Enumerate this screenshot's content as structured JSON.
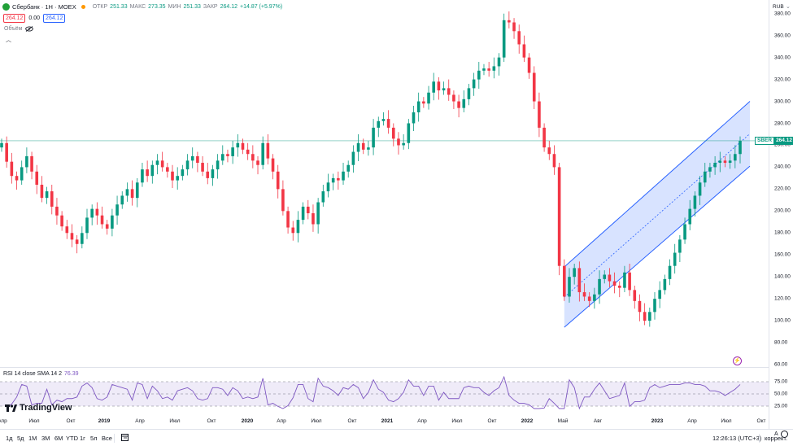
{
  "legend": {
    "symbol": "Сбербанк · 1Н · MOEX",
    "open_label": "ОТКР",
    "open": "251.33",
    "high_label": "МАКС",
    "high": "273.35",
    "low_label": "МИН",
    "low": "251.33",
    "close_label": "ЗАКР",
    "close": "264.12",
    "change": "+14.87 (+5.97%)",
    "bid": "264.12",
    "spread": "0.00",
    "ask": "264.12",
    "volume_label": "Объём"
  },
  "currency": "RUB",
  "last_price_label": {
    "ticker": "SBER",
    "price": "264.12"
  },
  "y_axis": [
    "380.00",
    "360.00",
    "340.00",
    "320.00",
    "300.00",
    "280.00",
    "260.00",
    "240.00",
    "220.00",
    "200.00",
    "180.00",
    "160.00",
    "140.00",
    "120.00",
    "100.00",
    "80.00",
    "60.00"
  ],
  "rsi": {
    "legend": "RSI 14 close SMA 14 2",
    "value": "76.39",
    "levels": [
      "75.00",
      "50.00",
      "25.00"
    ]
  },
  "x_axis": [
    {
      "label": "Апр",
      "year": false
    },
    {
      "label": "Июл",
      "year": false
    },
    {
      "label": "Окт",
      "year": false
    },
    {
      "label": "2019",
      "year": true
    },
    {
      "label": "Апр",
      "year": false
    },
    {
      "label": "Июл",
      "year": false
    },
    {
      "label": "Окт",
      "year": false
    },
    {
      "label": "2020",
      "year": true
    },
    {
      "label": "Апр",
      "year": false
    },
    {
      "label": "Июл",
      "year": false
    },
    {
      "label": "Окт",
      "year": false
    },
    {
      "label": "2021",
      "year": true
    },
    {
      "label": "Апр",
      "year": false
    },
    {
      "label": "Июл",
      "year": false
    },
    {
      "label": "Окт",
      "year": false
    },
    {
      "label": "2022",
      "year": true
    },
    {
      "label": "Май",
      "year": false
    },
    {
      "label": "Авг",
      "year": false
    },
    {
      "label": "2023",
      "year": true
    },
    {
      "label": "Апр",
      "year": false
    },
    {
      "label": "Июл",
      "year": false
    },
    {
      "label": "Окт",
      "year": false
    }
  ],
  "timeframes": [
    "1д",
    "5д",
    "1М",
    "3М",
    "6М",
    "YTD",
    "1г",
    "5л",
    "Все"
  ],
  "clock": "12:26:13 (UTC+3)",
  "adjust_label": "коррект.",
  "log_label": "A",
  "brand": "TradingView",
  "colors": {
    "up": "#089981",
    "down": "#f23645",
    "channel": "#2962ff",
    "rsi": "#7e57c2"
  },
  "chart_data": {
    "type": "candlestick",
    "symbol": "SBER",
    "ylim": [
      60,
      385
    ],
    "close_series": [
      262,
      245,
      232,
      228,
      240,
      250,
      236,
      224,
      212,
      218,
      204,
      196,
      186,
      180,
      174,
      170,
      180,
      194,
      202,
      196,
      188,
      184,
      196,
      206,
      214,
      220,
      212,
      226,
      238,
      232,
      242,
      246,
      240,
      236,
      228,
      232,
      238,
      246,
      250,
      244,
      236,
      230,
      238,
      246,
      252,
      250,
      258,
      262,
      256,
      252,
      246,
      242,
      262,
      248,
      236,
      220,
      200,
      185,
      180,
      192,
      204,
      198,
      188,
      208,
      218,
      226,
      230,
      228,
      236,
      242,
      254,
      262,
      256,
      258,
      276,
      282,
      284,
      276,
      266,
      260,
      262,
      280,
      290,
      300,
      298,
      308,
      318,
      310,
      312,
      306,
      300,
      294,
      302,
      312,
      320,
      328,
      330,
      328,
      332,
      340,
      374,
      372,
      364,
      352,
      340,
      326,
      300,
      276,
      258,
      252,
      240,
      150,
      122,
      140,
      148,
      126,
      122,
      118,
      124,
      138,
      142,
      136,
      132,
      130,
      144,
      128,
      118,
      108,
      100,
      108,
      120,
      128,
      138,
      150,
      162,
      174,
      188,
      202,
      214,
      226,
      236,
      240,
      244,
      246,
      244,
      246,
      252,
      264
    ],
    "channel": {
      "lower_start": 94,
      "lower_end": 241,
      "upper_start": 149,
      "upper_end": 300
    }
  }
}
